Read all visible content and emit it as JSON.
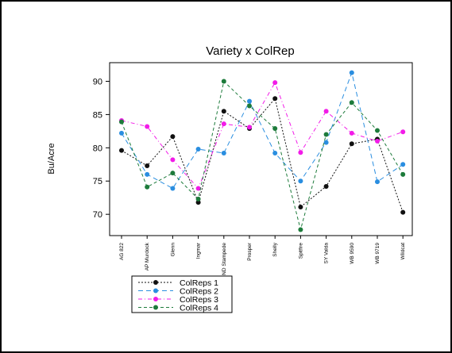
{
  "chart_data": {
    "type": "line",
    "title": "Variety x ColRep",
    "xlabel": "",
    "ylabel": "Bu/Acre",
    "ylim": [
      66.8,
      92.8
    ],
    "yticks": [
      70,
      75,
      80,
      85,
      90
    ],
    "grid": false,
    "legend_position": "bottom-left",
    "categories": [
      "AG 822",
      "AP Murdock",
      "Glenn",
      "Ingmar",
      "ND Stampede",
      "Prosper",
      "Shelly",
      "Spitfire",
      "SY Valda",
      "WB 9590",
      "WB 9719",
      "Wildcat"
    ],
    "series": [
      {
        "name": "ColReps 1",
        "color": "#111111",
        "dash": "2,2",
        "values": [
          79.6,
          77.3,
          81.7,
          71.8,
          85.5,
          82.9,
          87.4,
          71.1,
          74.2,
          80.6,
          81.3,
          70.3
        ]
      },
      {
        "name": "ColReps 2",
        "color": "#2a8ee0",
        "dash": "6,4",
        "values": [
          82.2,
          76.0,
          73.9,
          79.8,
          79.2,
          87.0,
          79.2,
          75.0,
          80.8,
          91.3,
          74.9,
          77.5
        ]
      },
      {
        "name": "ColReps 3",
        "color": "#f21be8",
        "dash": "5,3,1,3",
        "values": [
          84.1,
          83.2,
          78.2,
          73.9,
          83.6,
          83.1,
          89.8,
          79.3,
          85.5,
          82.2,
          81.0,
          82.4
        ]
      },
      {
        "name": "ColReps 4",
        "color": "#1d7b3b",
        "dash": "4,3",
        "values": [
          83.9,
          74.1,
          76.2,
          72.3,
          90.0,
          86.3,
          82.9,
          67.7,
          82.0,
          86.8,
          82.6,
          76.0
        ]
      }
    ]
  }
}
